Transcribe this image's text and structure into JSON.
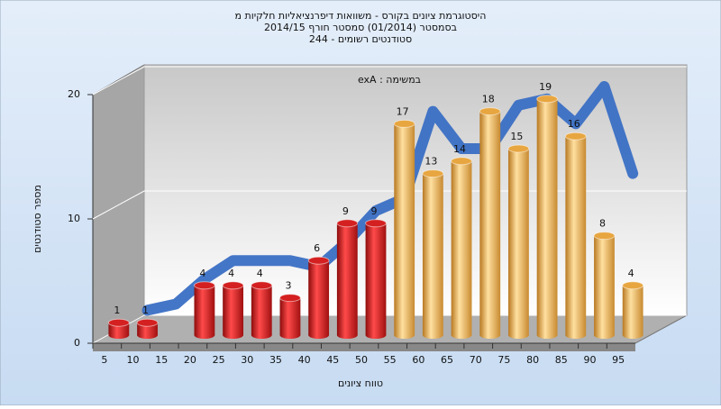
{
  "chart_data": {
    "type": "bar",
    "title": "היסטוגרמת ציונים בקורס - משוואות דיפרנציאליות חלקיות מ",
    "subtitle": "בסמסטר  (01/2014)  סמסטר חורף  2014/15",
    "subtitle2": "סטודנטים רשומים - 244",
    "annotation": "exA : במשימה",
    "ylabel": "מספר סטודנטים",
    "xlabel": "טווח ציונים",
    "categories": [
      "5",
      "10",
      "15",
      "20",
      "25",
      "30",
      "35",
      "40",
      "45",
      "50",
      "55",
      "60",
      "65",
      "70",
      "75",
      "80",
      "85",
      "90",
      "95"
    ],
    "values": [
      1,
      1,
      null,
      4,
      4,
      4,
      3,
      6,
      9,
      9,
      17,
      13,
      14,
      18,
      15,
      19,
      16,
      8,
      4
    ],
    "colors": [
      "#d42020",
      "#d42020",
      "#d42020",
      "#d42020",
      "#d42020",
      "#d42020",
      "#d42020",
      "#d42020",
      "#d42020",
      "#d42020",
      "#e8a640",
      "#e8a640",
      "#e8a640",
      "#e8a640",
      "#e8a640",
      "#e8a640",
      "#e8a640",
      "#e8a640",
      "#e8a640"
    ],
    "trend": [
      null,
      2,
      2.5,
      4.5,
      6,
      6,
      6,
      5.5,
      7.5,
      10,
      11,
      18,
      15,
      15,
      18.5,
      19,
      17,
      20,
      13
    ],
    "trend_color": "#3a6fc4",
    "ylim": [
      0,
      20
    ],
    "yticks": [
      0,
      10,
      20
    ],
    "grid": true
  }
}
